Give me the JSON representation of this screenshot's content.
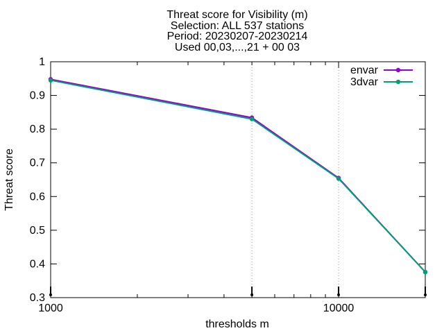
{
  "chart_data": {
    "type": "line",
    "title_lines": [
      "Threat score  for Visibility (m)",
      "Selection: ALL    537 stations",
      "Period: 20230207-20230214",
      "Used 00,03,...,21 + 00 03"
    ],
    "xlabel": "thresholds m",
    "ylabel": "Threat score",
    "x_scale": "log",
    "xlim": [
      1000,
      20000
    ],
    "ylim": [
      0.3,
      1.0
    ],
    "x_ticks": [
      1000,
      10000
    ],
    "x_tick_labels": [
      "1000",
      "10000"
    ],
    "y_ticks": [
      0.3,
      0.4,
      0.5,
      0.6,
      0.7,
      0.8,
      0.9,
      1.0
    ],
    "y_tick_labels": [
      "0.3",
      "0.4",
      "0.5",
      "0.6",
      "0.7",
      "0.8",
      "0.9",
      "1"
    ],
    "x": [
      1000,
      5000,
      10000,
      20000
    ],
    "legend_position": "top-right",
    "grid": "vertical dotted lines at data thresholds",
    "series": [
      {
        "name": "envar",
        "color": "#9400d3",
        "values": [
          0.948,
          0.834,
          0.655,
          0.376
        ]
      },
      {
        "name": "3dvar",
        "color": "#009e73",
        "values": [
          0.945,
          0.83,
          0.653,
          0.376
        ]
      }
    ]
  }
}
